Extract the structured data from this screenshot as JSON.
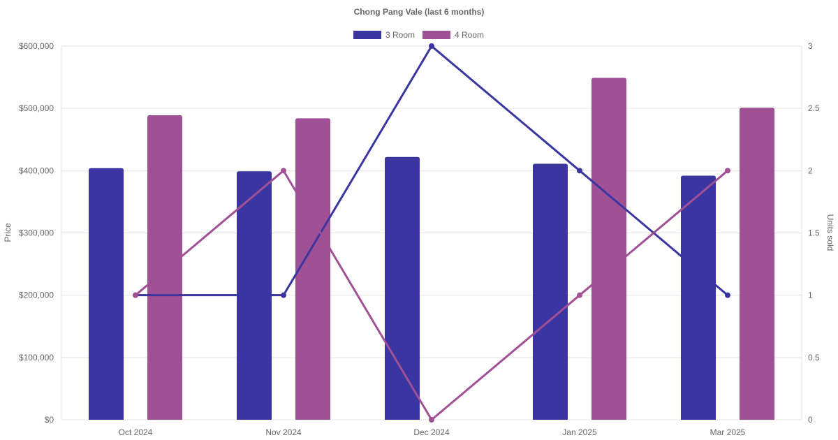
{
  "chart_data": {
    "type": "bar",
    "title": "Chong Pang Vale (last 6 months)",
    "categories": [
      "Oct 2024",
      "Nov 2024",
      "Dec 2024",
      "Jan 2025",
      "Mar 2025"
    ],
    "y_left": {
      "label": "Price",
      "range": [
        0,
        600000
      ],
      "ticks": [
        "$0",
        "$100,000",
        "$200,000",
        "$300,000",
        "$400,000",
        "$500,000",
        "$600,000"
      ]
    },
    "y_right": {
      "label": "Units sold",
      "range": [
        0,
        3
      ],
      "ticks": [
        "0",
        "0.5",
        "1",
        "1.5",
        "2",
        "2.5",
        "3"
      ]
    },
    "legend": {
      "placement": "top-center"
    },
    "grid": true,
    "series": [
      {
        "name": "3 Room",
        "color": "#3a35a1",
        "price": [
          404000,
          399000,
          422000,
          411000,
          392000
        ],
        "units_sold": [
          1,
          1,
          3,
          2,
          1
        ]
      },
      {
        "name": "4 Room",
        "color": "#a05095",
        "price": [
          489000,
          484000,
          null,
          549000,
          501000
        ],
        "units_sold": [
          1,
          2,
          0,
          1,
          2
        ]
      }
    ]
  }
}
